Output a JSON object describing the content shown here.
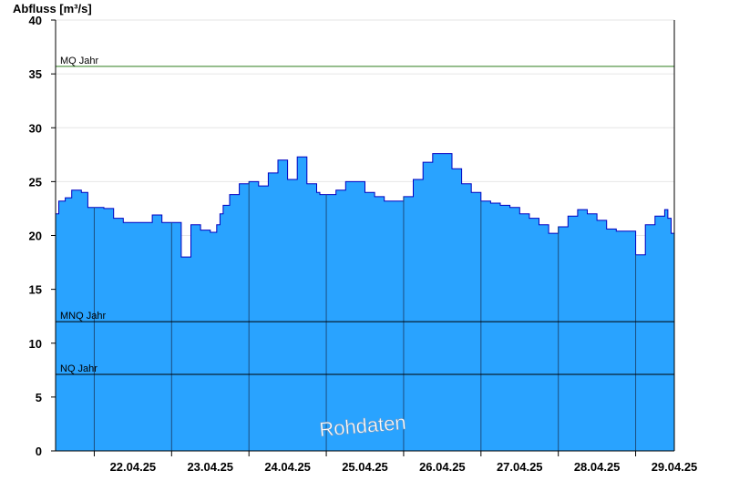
{
  "chart_data": {
    "type": "area",
    "ylabel": "Abfluss [m³/s]",
    "ylim": [
      0,
      40
    ],
    "yticks": [
      0,
      5,
      10,
      15,
      20,
      25,
      30,
      35,
      40
    ],
    "x_range": [
      "21.04.25 12:00",
      "29.04.25 12:00"
    ],
    "xtick_labels": [
      "22.04.25",
      "23.04.25",
      "24.04.25",
      "25.04.25",
      "26.04.25",
      "27.04.25",
      "28.04.25",
      "29.04.25"
    ],
    "grid": true,
    "fill_color": "#29a3ff",
    "line_color": "#0000c0",
    "watermark": "Rohdaten",
    "reference_lines": [
      {
        "label": "MQ Jahr",
        "value": 35.7,
        "color": "#2e7d1e"
      },
      {
        "label": "MNQ Jahr",
        "value": 12.0,
        "color": "#000000"
      },
      {
        "label": "NQ Jahr",
        "value": 7.1,
        "color": "#000000"
      }
    ],
    "x": [
      "21.04.25 12:00",
      "21.04.25 13:00",
      "21.04.25 15:00",
      "21.04.25 17:00",
      "21.04.25 20:00",
      "21.04.25 22:00",
      "22.04.25 01:00",
      "22.04.25 03:00",
      "22.04.25 06:00",
      "22.04.25 09:00",
      "22.04.25 12:00",
      "22.04.25 15:00",
      "22.04.25 18:00",
      "22.04.25 21:00",
      "23.04.25 00:00",
      "23.04.25 03:00",
      "23.04.25 06:00",
      "23.04.25 09:00",
      "23.04.25 12:00",
      "23.04.25 14:00",
      "23.04.25 15:00",
      "23.04.25 16:00",
      "23.04.25 18:00",
      "23.04.25 21:00",
      "24.04.25 00:00",
      "24.04.25 03:00",
      "24.04.25 06:00",
      "24.04.25 09:00",
      "24.04.25 12:00",
      "24.04.25 15:00",
      "24.04.25 18:00",
      "24.04.25 21:00",
      "24.04.25 22:00",
      "25.04.25 00:00",
      "25.04.25 03:00",
      "25.04.25 06:00",
      "25.04.25 09:00",
      "25.04.25 12:00",
      "25.04.25 15:00",
      "25.04.25 18:00",
      "25.04.25 21:00",
      "26.04.25 00:00",
      "26.04.25 03:00",
      "26.04.25 06:00",
      "26.04.25 09:00",
      "26.04.25 12:00",
      "26.04.25 15:00",
      "26.04.25 18:00",
      "26.04.25 21:00",
      "27.04.25 00:00",
      "27.04.25 03:00",
      "27.04.25 06:00",
      "27.04.25 09:00",
      "27.04.25 12:00",
      "27.04.25 15:00",
      "27.04.25 18:00",
      "27.04.25 21:00",
      "28.04.25 00:00",
      "28.04.25 03:00",
      "28.04.25 06:00",
      "28.04.25 09:00",
      "28.04.25 12:00",
      "28.04.25 15:00",
      "28.04.25 18:00",
      "28.04.25 21:00",
      "29.04.25 00:00",
      "29.04.25 03:00",
      "29.04.25 06:00",
      "29.04.25 09:00",
      "29.04.25 10:00",
      "29.04.25 11:00",
      "29.04.25 12:00"
    ],
    "y": [
      22.0,
      23.2,
      23.5,
      24.2,
      24.0,
      22.6,
      22.6,
      22.5,
      21.6,
      21.2,
      21.2,
      21.2,
      21.9,
      21.2,
      21.2,
      18.0,
      21.0,
      20.5,
      20.3,
      21.0,
      22.0,
      22.8,
      23.8,
      24.8,
      25.0,
      24.6,
      25.8,
      27.0,
      25.2,
      27.3,
      24.8,
      24.0,
      23.8,
      23.8,
      24.2,
      25.0,
      25.0,
      24.0,
      23.6,
      23.2,
      23.2,
      23.6,
      25.2,
      26.8,
      27.6,
      27.6,
      26.2,
      24.8,
      24.0,
      23.2,
      23.0,
      22.8,
      22.6,
      22.0,
      21.6,
      21.0,
      20.2,
      20.8,
      21.8,
      22.4,
      22.0,
      21.4,
      20.6,
      20.4,
      20.4,
      18.2,
      21.0,
      21.8,
      22.4,
      21.6,
      20.2,
      19.0
    ]
  }
}
